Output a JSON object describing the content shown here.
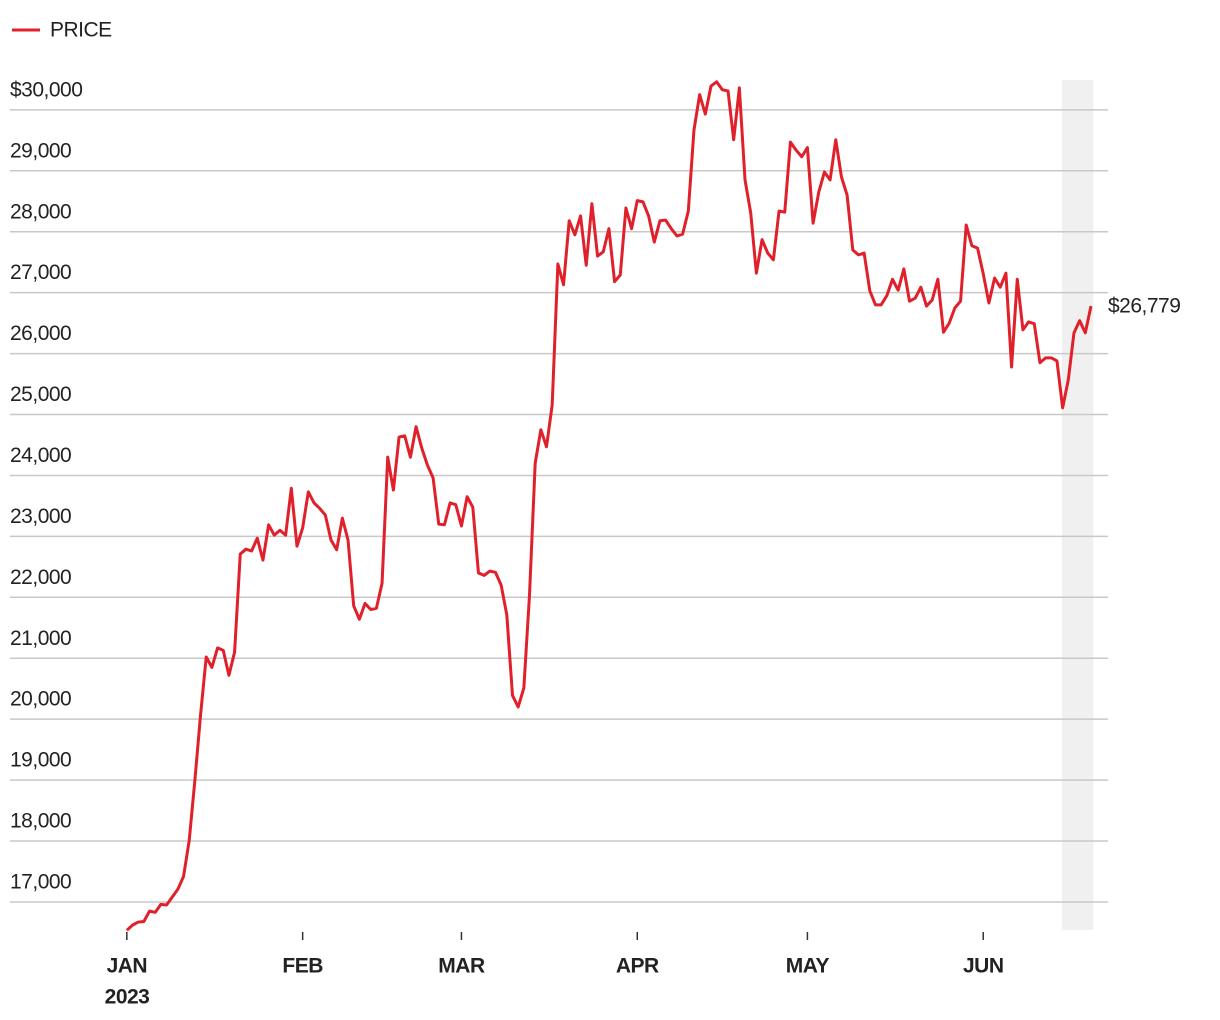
{
  "chart_data": {
    "type": "line",
    "year_label": "2023",
    "x": [
      0,
      1,
      2,
      3,
      4,
      5,
      6,
      7,
      8,
      9,
      10,
      11,
      12,
      13,
      14,
      15,
      16,
      17,
      18,
      19,
      20,
      21,
      22,
      23,
      24,
      25,
      26,
      27,
      28,
      29,
      30,
      31,
      32,
      33,
      34,
      35,
      36,
      37,
      38,
      39,
      40,
      41,
      42,
      43,
      44,
      45,
      46,
      47,
      48,
      49,
      50,
      51,
      52,
      53,
      54,
      55,
      56,
      57,
      58,
      59,
      60,
      61,
      62,
      63,
      64,
      65,
      66,
      67,
      68,
      69,
      70,
      71,
      72,
      73,
      74,
      75,
      76,
      77,
      78,
      79,
      80,
      81,
      82,
      83,
      84,
      85,
      86,
      87,
      88,
      89,
      90,
      91,
      92,
      93,
      94,
      95,
      96,
      97,
      98,
      99,
      100,
      101,
      102,
      103,
      104,
      105,
      106,
      107,
      108,
      109,
      110,
      111,
      112,
      113,
      114,
      115,
      116,
      117,
      118,
      119,
      120,
      121,
      122,
      123,
      124,
      125,
      126,
      127,
      128,
      129,
      130,
      131,
      132,
      133,
      134,
      135,
      136,
      137,
      138,
      139,
      140,
      141,
      142,
      143,
      144,
      145,
      146,
      147,
      148,
      149,
      150,
      151,
      152,
      153,
      154,
      155,
      156,
      157,
      158,
      159,
      160,
      161,
      162,
      163,
      164,
      165,
      166,
      167,
      168,
      169,
      170
    ],
    "series": [
      {
        "name": "PRICE",
        "color": "#e0202a",
        "values": [
          16535,
          16620,
          16670,
          16680,
          16850,
          16830,
          16960,
          16950,
          17080,
          17210,
          17420,
          18010,
          19000,
          20070,
          21020,
          20850,
          21170,
          21130,
          20720,
          21100,
          22710,
          22790,
          22760,
          22970,
          22610,
          23190,
          23020,
          23100,
          23020,
          23790,
          22840,
          23140,
          23730,
          23550,
          23460,
          23350,
          22940,
          22780,
          23300,
          22940,
          21860,
          21640,
          21900,
          21800,
          21820,
          22230,
          24300,
          23760,
          24630,
          24650,
          24300,
          24800,
          24450,
          24170,
          23960,
          23200,
          23190,
          23550,
          23520,
          23170,
          23650,
          23480,
          22400,
          22360,
          22430,
          22410,
          22200,
          21710,
          20390,
          20200,
          20510,
          22040,
          24200,
          24750,
          24470,
          25160,
          27470,
          27130,
          28180,
          27950,
          28260,
          27450,
          28460,
          27600,
          27670,
          28050,
          27180,
          27290,
          28390,
          28050,
          28510,
          28490,
          28260,
          27830,
          28180,
          28190,
          28050,
          27930,
          27960,
          28340,
          29670,
          30250,
          29930,
          30390,
          30460,
          30330,
          30310,
          29510,
          30360,
          28850,
          28310,
          27320,
          27870,
          27650,
          27540,
          28340,
          28320,
          29470,
          29340,
          29230,
          29380,
          28140,
          28650,
          28980,
          28850,
          29510,
          28900,
          28600,
          27700,
          27620,
          27650,
          27030,
          26800,
          26800,
          26950,
          27220,
          27040,
          27390,
          26860,
          26910,
          27090,
          26780,
          26880,
          27220,
          26350,
          26500,
          26750,
          26860,
          28110,
          27770,
          27730,
          27310,
          26830,
          27240,
          27090,
          27320,
          25780,
          27220,
          26390,
          26520,
          26490,
          25850,
          25930,
          25930,
          25880,
          25110,
          25570,
          26340,
          26540,
          26340,
          26779
        ],
        "value_labels": [
          null,
          null,
          null,
          null,
          null,
          null,
          null,
          null,
          null,
          null,
          null,
          null,
          null,
          null,
          null,
          null,
          null,
          null,
          null,
          null,
          null,
          null,
          null,
          null,
          null,
          null,
          null,
          null,
          null,
          null,
          null,
          null,
          null,
          null,
          null,
          null,
          null,
          null,
          null,
          null,
          null,
          null,
          null,
          null,
          null,
          null,
          null,
          null,
          null,
          null,
          null,
          null,
          null,
          null,
          null,
          null,
          null,
          null,
          null,
          null,
          null,
          null,
          null,
          null,
          null,
          null,
          null,
          null,
          null,
          null,
          null,
          null,
          null,
          null,
          null,
          null,
          null,
          null,
          null,
          null,
          null,
          null,
          null,
          null,
          null,
          null,
          null,
          null,
          null,
          null,
          null,
          null,
          null,
          null,
          null,
          null,
          null,
          null,
          null,
          null,
          null,
          null,
          null,
          null,
          null,
          null,
          null,
          null,
          null,
          null,
          null,
          null,
          null,
          null,
          null,
          null,
          null,
          null,
          null,
          null,
          null,
          null,
          null,
          null,
          null,
          null,
          null,
          null,
          null,
          null,
          null,
          null,
          null,
          null,
          null,
          null,
          null,
          null,
          null,
          null,
          null,
          null,
          null,
          null,
          null,
          null,
          null,
          null,
          null,
          null,
          null,
          null,
          null,
          null,
          null,
          null,
          null,
          null,
          null,
          null,
          null,
          null,
          null,
          null,
          null,
          null,
          null,
          null,
          null,
          null,
          "$26,779"
        ]
      }
    ],
    "xlim": [
      -20.6,
      173
    ],
    "xticks": [
      {
        "value": 0,
        "label": "JAN"
      },
      {
        "value": 31,
        "label": "FEB"
      },
      {
        "value": 59,
        "label": "MAR"
      },
      {
        "value": 90,
        "label": "APR"
      },
      {
        "value": 120,
        "label": "MAY"
      },
      {
        "value": 151,
        "label": "JUN"
      }
    ],
    "ylim": [
      16540,
      30490
    ],
    "yticks": [
      {
        "value": 17000,
        "label": "17,000"
      },
      {
        "value": 18000,
        "label": "18,000"
      },
      {
        "value": 19000,
        "label": "19,000"
      },
      {
        "value": 20000,
        "label": "20,000"
      },
      {
        "value": 21000,
        "label": "21,000"
      },
      {
        "value": 22000,
        "label": "22,000"
      },
      {
        "value": 23000,
        "label": "23,000"
      },
      {
        "value": 24000,
        "label": "24,000"
      },
      {
        "value": 25000,
        "label": "25,000"
      },
      {
        "value": 26000,
        "label": "26,000"
      },
      {
        "value": 27000,
        "label": "27,000"
      },
      {
        "value": 28000,
        "label": "28,000"
      },
      {
        "value": 29000,
        "label": "29,000"
      },
      {
        "value": 30000,
        "label": "$30,000"
      }
    ],
    "grid": true,
    "highlight": [
      164.9,
      170.4
    ],
    "highlight_color": "#f0f0f0",
    "legend": "top-left"
  }
}
